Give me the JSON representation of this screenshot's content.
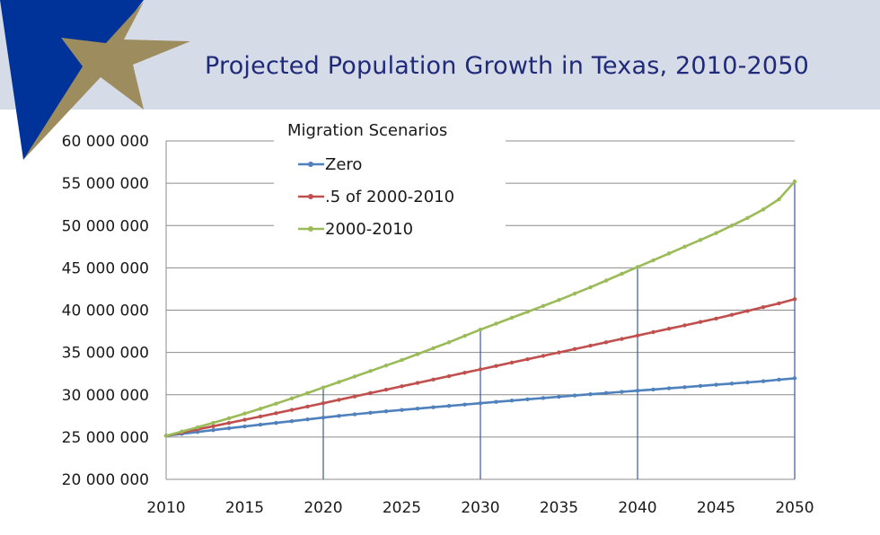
{
  "slide": {
    "title": "Projected Population Growth in Texas, 2010-2050"
  },
  "colors": {
    "header_band": "#d6dbe8",
    "logo_blue": "#003399",
    "logo_star": "#9c8c5e",
    "title_text": "#1f2a7a",
    "series_zero": "#4f81bd",
    "series_half": "#c0504d",
    "series_full": "#9bbb59",
    "gridline": "#8c8c8c",
    "drop_line": "#3b5b8f"
  },
  "icons": {
    "logo": "star-logo-icon"
  },
  "chart_data": {
    "type": "line",
    "title": "",
    "legend_title": "Migration Scenarios",
    "legend_position": "top-left",
    "xlabel": "",
    "ylabel": "",
    "x_start": 2010,
    "x_end": 2050,
    "xlim": [
      2010,
      2050
    ],
    "ylim": [
      20000000,
      60000000
    ],
    "x_ticks": [
      "2010",
      "2015",
      "2020",
      "2025",
      "2030",
      "2035",
      "2040",
      "2045",
      "2050"
    ],
    "y_ticks": [
      "20 000 000",
      "25 000 000",
      "30 000 000",
      "35 000 000",
      "40 000 000",
      "45 000 000",
      "50 000 000",
      "55 000 000",
      "60 000 000"
    ],
    "grid": "horizontal",
    "vertical_markers": [
      2020,
      2030,
      2040,
      2050
    ],
    "series": [
      {
        "name": "Zero",
        "color": "#4f81bd",
        "values": [
          25150000,
          25380000,
          25600000,
          25820000,
          26040000,
          26250000,
          26460000,
          26670000,
          26880000,
          27090000,
          27300000,
          27500000,
          27690000,
          27870000,
          28040000,
          28200000,
          28360000,
          28520000,
          28680000,
          28840000,
          29000000,
          29160000,
          29310000,
          29460000,
          29610000,
          29760000,
          29910000,
          30060000,
          30200000,
          30340000,
          30480000,
          30620000,
          30760000,
          30900000,
          31040000,
          31180000,
          31320000,
          31460000,
          31600000,
          31780000,
          31950000
        ]
      },
      {
        "name": ".5 of 2000-2010",
        "color": "#c0504d",
        "values": [
          25150000,
          25520000,
          25900000,
          26280000,
          26660000,
          27050000,
          27430000,
          27820000,
          28210000,
          28600000,
          29000000,
          29400000,
          29800000,
          30200000,
          30600000,
          31000000,
          31400000,
          31800000,
          32200000,
          32600000,
          33000000,
          33400000,
          33800000,
          34200000,
          34600000,
          35000000,
          35400000,
          35800000,
          36200000,
          36600000,
          37000000,
          37400000,
          37800000,
          38200000,
          38600000,
          39000000,
          39450000,
          39900000,
          40350000,
          40800000,
          41300000
        ]
      },
      {
        "name": "2000-2010",
        "color": "#9bbb59",
        "values": [
          25150000,
          25650000,
          26150000,
          26680000,
          27220000,
          27780000,
          28350000,
          28950000,
          29570000,
          30200000,
          30850000,
          31500000,
          32150000,
          32800000,
          33450000,
          34100000,
          34800000,
          35500000,
          36200000,
          36950000,
          37700000,
          38400000,
          39100000,
          39800000,
          40500000,
          41200000,
          41950000,
          42700000,
          43500000,
          44300000,
          45100000,
          45900000,
          46700000,
          47500000,
          48300000,
          49100000,
          50000000,
          50900000,
          51900000,
          53100000,
          55200000
        ]
      }
    ]
  }
}
